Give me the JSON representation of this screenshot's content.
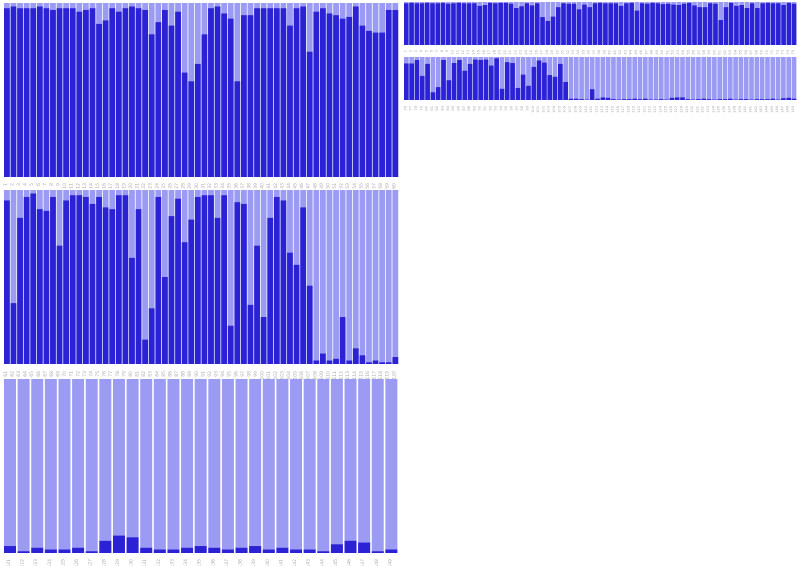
{
  "colors": {
    "background_bar": "#9b9bf4",
    "value_bar": "#2b22d6",
    "tick_text": "#aaaaaa"
  },
  "chart_data": [
    {
      "type": "bar",
      "stacked": "proportion",
      "ylim": [
        0,
        1
      ],
      "grid": false,
      "categories": [
        "1",
        "2",
        "3",
        "4",
        "5",
        "6",
        "7",
        "8",
        "9",
        "10",
        "11",
        "12",
        "13",
        "14",
        "15",
        "16",
        "17",
        "18",
        "19",
        "20",
        "21",
        "22",
        "23",
        "24",
        "25",
        "26",
        "27",
        "28",
        "29",
        "30",
        "31",
        "32",
        "33",
        "34",
        "35",
        "36",
        "37",
        "38",
        "39",
        "40",
        "41",
        "42",
        "43",
        "44",
        "45",
        "46",
        "47",
        "48",
        "49",
        "50",
        "51",
        "52",
        "53",
        "54",
        "55",
        "56",
        "57",
        "58",
        "59",
        "60"
      ],
      "values": [
        0.97,
        0.98,
        0.97,
        0.97,
        0.97,
        0.98,
        0.97,
        0.96,
        0.97,
        0.97,
        0.97,
        0.95,
        0.96,
        0.97,
        0.88,
        0.9,
        0.97,
        0.95,
        0.97,
        0.98,
        0.97,
        0.96,
        0.82,
        0.89,
        0.96,
        0.87,
        0.95,
        0.6,
        0.55,
        0.65,
        0.82,
        0.97,
        0.98,
        0.94,
        0.91,
        0.55,
        0.93,
        0.93,
        0.97,
        0.97,
        0.97,
        0.97,
        0.97,
        0.87,
        0.97,
        0.98,
        0.72,
        0.95,
        0.97,
        0.94,
        0.93,
        0.91,
        0.92,
        0.98,
        0.87,
        0.84,
        0.83,
        0.83,
        0.96,
        0.96
      ]
    },
    {
      "type": "bar",
      "stacked": "proportion",
      "ylim": [
        0,
        1
      ],
      "grid": false,
      "categories": [
        "61",
        "62",
        "63",
        "64",
        "65",
        "66",
        "67",
        "68",
        "69",
        "70",
        "71",
        "72",
        "73",
        "74",
        "75",
        "76",
        "77",
        "78",
        "79",
        "80",
        "81",
        "82",
        "83",
        "84",
        "85",
        "86",
        "87",
        "88",
        "89",
        "90",
        "91",
        "92",
        "93",
        "94",
        "95",
        "96",
        "97",
        "98",
        "99",
        "100",
        "101",
        "102",
        "103",
        "104",
        "105",
        "106",
        "107",
        "108",
        "109",
        "110",
        "111",
        "112",
        "113",
        "114",
        "115",
        "116",
        "117",
        "118",
        "119",
        "120"
      ],
      "values": [
        0.94,
        0.35,
        0.84,
        0.96,
        0.98,
        0.89,
        0.88,
        0.96,
        0.68,
        0.94,
        0.97,
        0.97,
        0.96,
        0.92,
        0.96,
        0.9,
        0.89,
        0.97,
        0.97,
        0.61,
        0.89,
        0.14,
        0.32,
        0.96,
        0.5,
        0.85,
        0.95,
        0.7,
        0.83,
        0.96,
        0.97,
        0.97,
        0.84,
        0.97,
        0.22,
        0.93,
        0.92,
        0.34,
        0.68,
        0.27,
        0.84,
        0.96,
        0.94,
        0.64,
        0.57,
        0.9,
        0.45,
        0.02,
        0.06,
        0.02,
        0.03,
        0.27,
        0.02,
        0.09,
        0.05,
        0.01,
        0.02,
        0.01,
        0.01,
        0.04
      ]
    },
    {
      "type": "bar",
      "stacked": "proportion",
      "ylim": [
        0,
        1
      ],
      "grid": false,
      "categories": [
        "121",
        "122",
        "123",
        "124",
        "125",
        "126",
        "127",
        "128",
        "129",
        "130",
        "131",
        "132",
        "133",
        "134",
        "135",
        "136",
        "137",
        "138",
        "139",
        "140",
        "141",
        "142",
        "143",
        "144",
        "145",
        "146",
        "147",
        "148",
        "149"
      ],
      "values": [
        0.04,
        0.01,
        0.03,
        0.02,
        0.02,
        0.03,
        0.01,
        0.07,
        0.1,
        0.09,
        0.03,
        0.02,
        0.02,
        0.03,
        0.04,
        0.03,
        0.02,
        0.03,
        0.04,
        0.02,
        0.03,
        0.02,
        0.02,
        0.01,
        0.05,
        0.07,
        0.06,
        0.01,
        0.02
      ]
    },
    {
      "type": "bar",
      "stacked": "proportion",
      "ylim": [
        0,
        1
      ],
      "grid": false,
      "categories": [
        "1",
        "2",
        "3",
        "4",
        "5",
        "6",
        "7",
        "8",
        "9",
        "10",
        "11",
        "12",
        "13",
        "14",
        "15",
        "16",
        "17",
        "18",
        "19",
        "20",
        "21",
        "22",
        "23",
        "24",
        "25",
        "26",
        "27",
        "28",
        "29",
        "30",
        "31",
        "32",
        "33",
        "34",
        "35",
        "36",
        "37",
        "38",
        "39",
        "40",
        "41",
        "42",
        "43",
        "44",
        "45",
        "46",
        "47",
        "48",
        "49",
        "50",
        "51",
        "52",
        "53",
        "54",
        "55",
        "56",
        "57",
        "58",
        "59",
        "60",
        "61",
        "62",
        "63",
        "64",
        "65",
        "66",
        "67",
        "68",
        "69",
        "70",
        "71",
        "72",
        "73",
        "74",
        "75"
      ],
      "values": [
        0.97,
        0.98,
        0.97,
        0.97,
        0.98,
        0.97,
        0.97,
        0.98,
        0.96,
        0.97,
        0.98,
        0.97,
        0.97,
        0.97,
        0.91,
        0.93,
        0.98,
        0.97,
        0.98,
        0.98,
        0.96,
        0.86,
        0.9,
        0.97,
        0.92,
        0.97,
        0.65,
        0.56,
        0.66,
        0.88,
        0.97,
        0.96,
        0.96,
        0.83,
        0.94,
        0.88,
        0.97,
        0.98,
        0.97,
        0.97,
        0.97,
        0.91,
        0.97,
        0.98,
        0.8,
        0.97,
        0.96,
        0.98,
        0.97,
        0.95,
        0.96,
        0.94,
        0.93,
        0.96,
        0.98,
        0.92,
        0.88,
        0.88,
        0.97,
        0.96,
        0.58,
        0.88,
        0.98,
        0.91,
        0.93,
        0.86,
        0.97,
        0.86,
        0.97,
        0.98,
        0.97,
        0.97,
        0.93,
        0.98,
        0.96
      ]
    },
    {
      "type": "bar",
      "stacked": "proportion",
      "ylim": [
        0,
        1
      ],
      "grid": false,
      "categories": [
        "76",
        "77",
        "78",
        "79",
        "80",
        "81",
        "82",
        "83",
        "84",
        "85",
        "86",
        "87",
        "88",
        "89",
        "90",
        "91",
        "92",
        "93",
        "94",
        "95",
        "96",
        "97",
        "98",
        "99",
        "100",
        "101",
        "102",
        "103",
        "104",
        "105",
        "106",
        "107",
        "108",
        "109",
        "110",
        "111",
        "112",
        "113",
        "114",
        "115",
        "116",
        "117",
        "118",
        "119",
        "120",
        "121",
        "122",
        "123",
        "124",
        "125",
        "126",
        "127",
        "128",
        "129",
        "130",
        "131",
        "132",
        "133",
        "134",
        "135",
        "136",
        "137",
        "138",
        "139",
        "140",
        "141",
        "142",
        "143",
        "144",
        "145",
        "146",
        "147",
        "148",
        "149"
      ],
      "values": [
        0.85,
        0.85,
        0.93,
        0.56,
        0.84,
        0.18,
        0.3,
        0.93,
        0.46,
        0.86,
        0.93,
        0.68,
        0.84,
        0.94,
        0.93,
        0.94,
        0.8,
        0.97,
        0.26,
        0.88,
        0.86,
        0.28,
        0.59,
        0.33,
        0.77,
        0.92,
        0.87,
        0.58,
        0.54,
        0.84,
        0.42,
        0.03,
        0.03,
        0.02,
        0.01,
        0.25,
        0.03,
        0.06,
        0.05,
        0.02,
        0.01,
        0.02,
        0.02,
        0.03,
        0.02,
        0.03,
        0.01,
        0.01,
        0.02,
        0.01,
        0.05,
        0.06,
        0.06,
        0.02,
        0.01,
        0.02,
        0.03,
        0.02,
        0.01,
        0.02,
        0.02,
        0.03,
        0.01,
        0.02,
        0.02,
        0.01,
        0.02,
        0.02,
        0.02,
        0.03,
        0.01,
        0.04,
        0.05,
        0.03
      ]
    }
  ]
}
